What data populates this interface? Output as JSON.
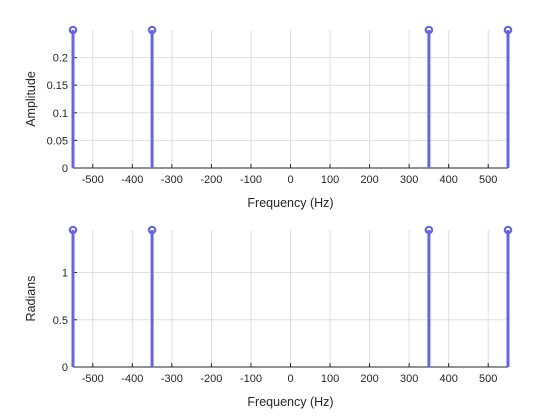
{
  "chart_data": [
    {
      "type": "stem",
      "title": "",
      "xlabel": "Frequency (Hz)",
      "ylabel": "Amplitude",
      "xlim": [
        -550,
        550
      ],
      "ylim": [
        0,
        0.25
      ],
      "grid": true,
      "x": [
        -550,
        -350,
        350,
        550
      ],
      "values": [
        0.25,
        0.25,
        0.25,
        0.25
      ],
      "xticks": [
        -500,
        -400,
        -300,
        -200,
        -100,
        0,
        100,
        200,
        300,
        400,
        500
      ],
      "xtick_labels": [
        "-500",
        "-400",
        "-300",
        "-200",
        "-100",
        "0",
        "100",
        "200",
        "300",
        "400",
        "500"
      ],
      "yticks": [
        0,
        0.05,
        0.1,
        0.15,
        0.2
      ],
      "ytick_labels": [
        "0",
        "0.05",
        "0.1",
        "0.15",
        "0.2"
      ],
      "color": "#6666dd"
    },
    {
      "type": "stem",
      "title": "",
      "xlabel": "Frequency (Hz)",
      "ylabel": "Radians",
      "xlim": [
        -550,
        550
      ],
      "ylim": [
        0,
        1.45
      ],
      "grid": true,
      "x": [
        -550,
        -350,
        350,
        550
      ],
      "values": [
        1.45,
        1.45,
        1.45,
        1.45
      ],
      "xticks": [
        -500,
        -400,
        -300,
        -200,
        -100,
        0,
        100,
        200,
        300,
        400,
        500
      ],
      "xtick_labels": [
        "-500",
        "-400",
        "-300",
        "-200",
        "-100",
        "0",
        "100",
        "200",
        "300",
        "400",
        "500"
      ],
      "yticks": [
        0,
        0.5,
        1
      ],
      "ytick_labels": [
        "0",
        "0.5",
        "1"
      ],
      "color": "#6666dd"
    }
  ]
}
